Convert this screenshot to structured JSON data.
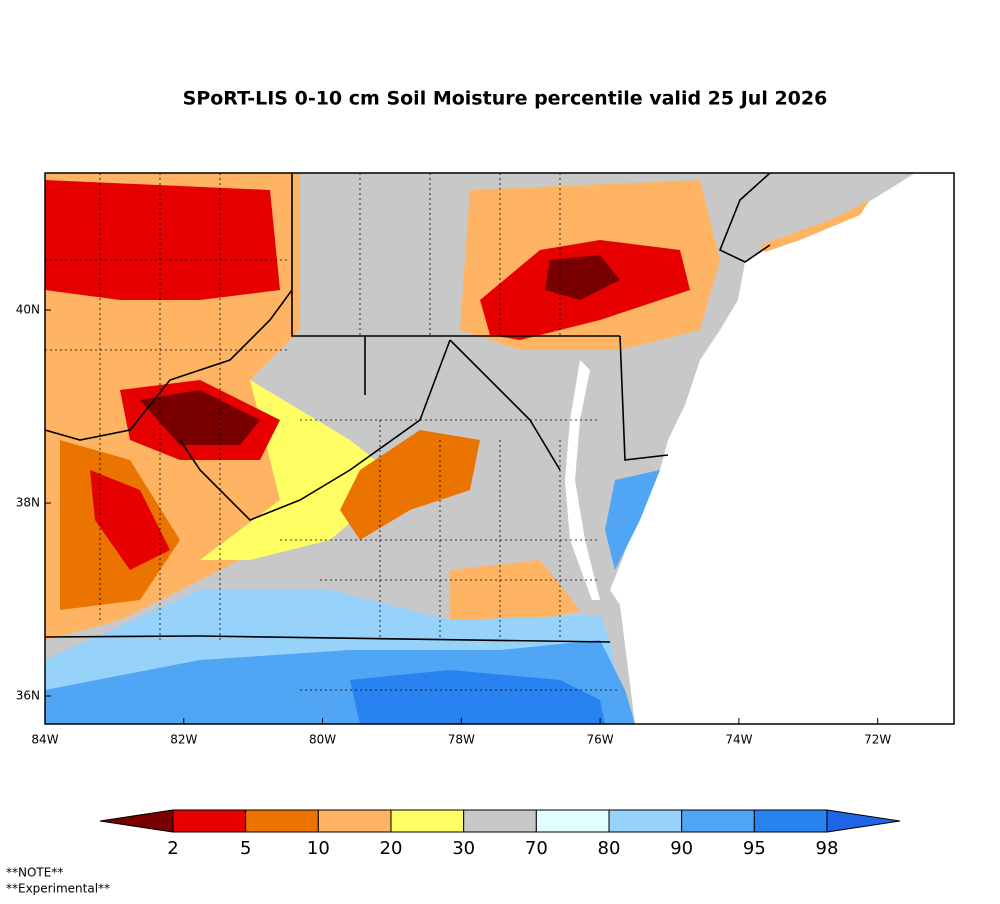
{
  "map": {
    "title": "SPoRT-LIS 0-10 cm Soil Moisture percentile valid 25 Jul 2026",
    "xlim": [
      -84,
      -70.9
    ],
    "ylim": [
      35.71,
      41.42
    ],
    "xticks": [
      {
        "value": -84,
        "label": "84W"
      },
      {
        "value": -82,
        "label": "82W"
      },
      {
        "value": -80,
        "label": "80W"
      },
      {
        "value": -78,
        "label": "78W"
      },
      {
        "value": -76,
        "label": "76W"
      },
      {
        "value": -74,
        "label": "74W"
      },
      {
        "value": -72,
        "label": "72W"
      }
    ],
    "yticks": [
      {
        "value": 36,
        "label": "36N"
      },
      {
        "value": 38,
        "label": "38N"
      },
      {
        "value": 40,
        "label": "40N"
      }
    ],
    "colorbar": {
      "labels": [
        2,
        5,
        10,
        20,
        30,
        70,
        80,
        90,
        95,
        98
      ],
      "colors": [
        "#780000",
        "#e60000",
        "#eb7300",
        "#ffb464",
        "#ffff64",
        "#c8c8c8",
        "#e1ffff",
        "#96d2fa",
        "#50a5f5",
        "#2882f0",
        "#1e64e6"
      ]
    },
    "notes": [
      "**NOTE**",
      "**Experimental**"
    ]
  }
}
